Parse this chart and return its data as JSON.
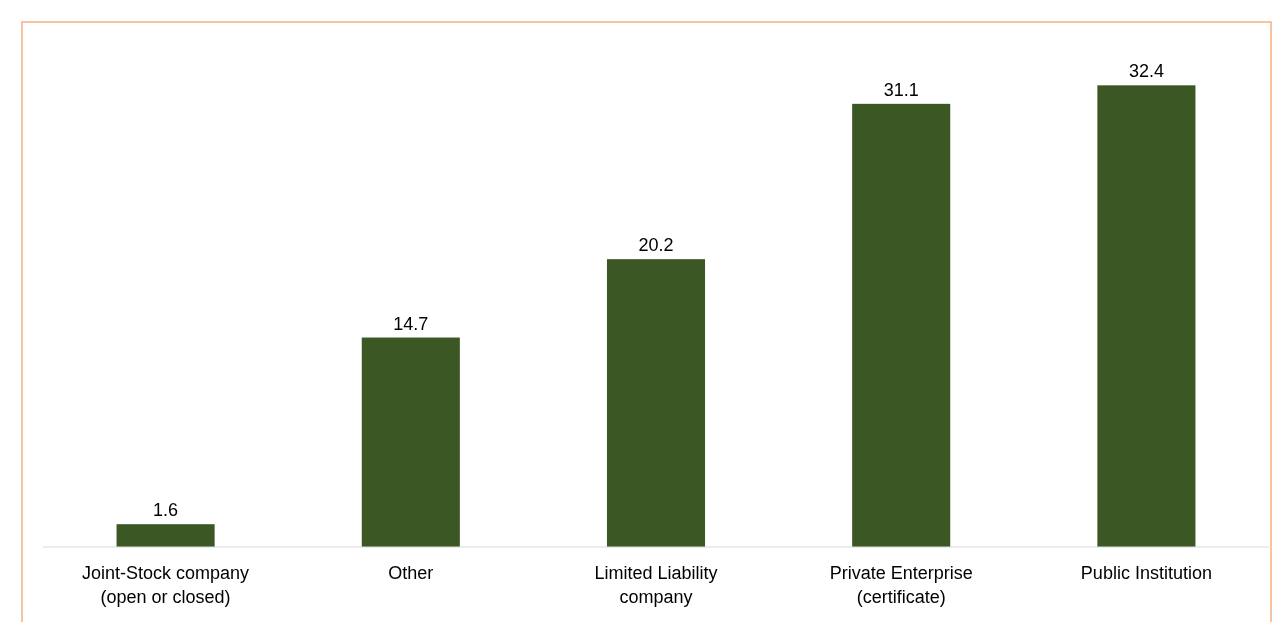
{
  "chart_data": {
    "type": "bar",
    "categories": [
      "Joint-Stock company\n(open or closed)",
      "Other",
      "Limited Liability\ncompany",
      "Private Enterprise\n(certificate)",
      "Public Institution"
    ],
    "values": [
      1.6,
      14.7,
      20.2,
      31.1,
      32.4
    ],
    "color": "#3a5724",
    "data_labels": true
  }
}
